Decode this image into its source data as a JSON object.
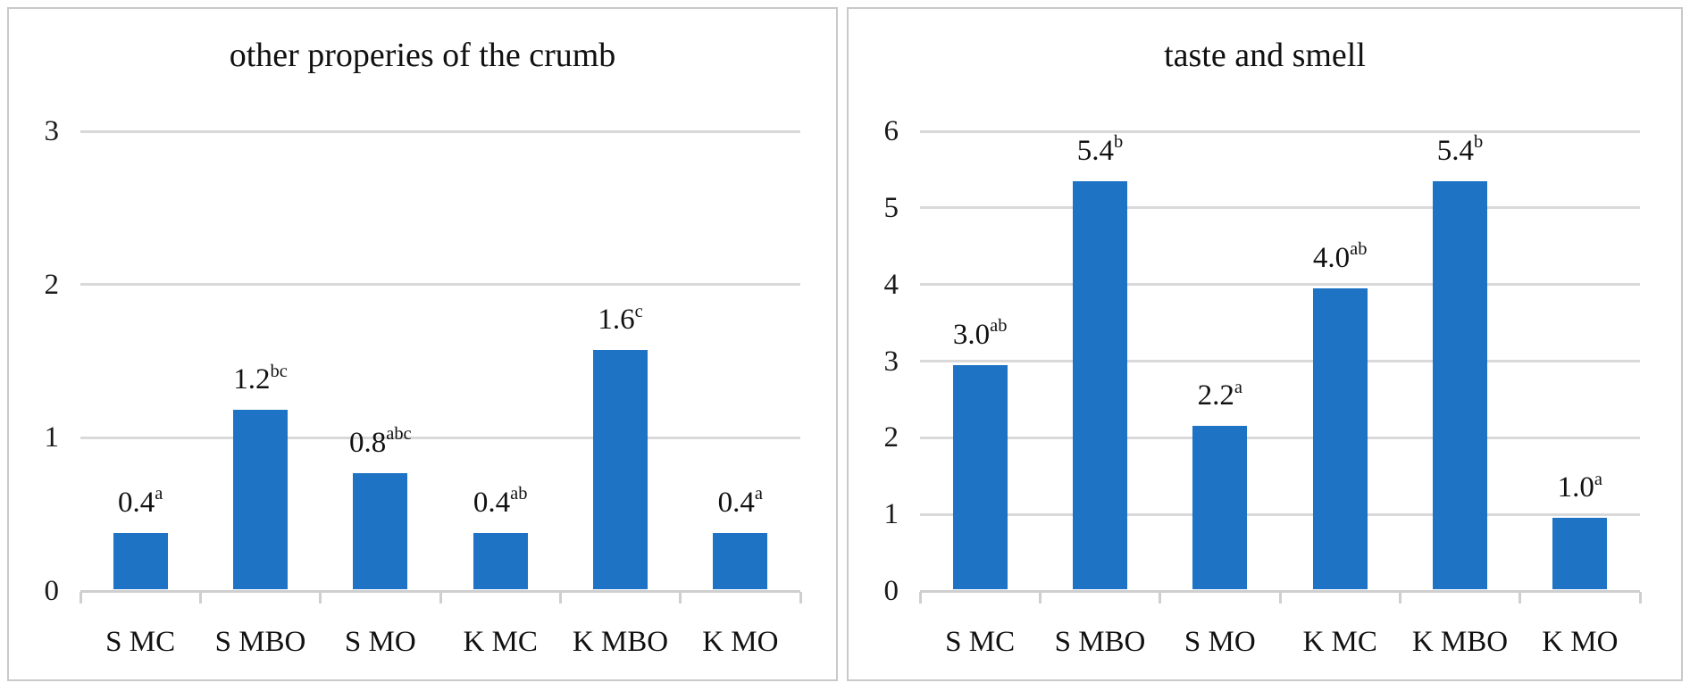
{
  "figure_caption_hidden": "",
  "style": {
    "bar_color": "#1E73C5",
    "gridline_color": "#d9d9d9",
    "axis_color": "#cfcfcf",
    "panel_border_color": "#c9c9c9",
    "text_color": "#111111",
    "background": "#ffffff"
  },
  "chart_data": [
    {
      "type": "bar",
      "title": "other properies of the crumb",
      "categories": [
        "S MC",
        "S MBO",
        "S MO",
        "K MC",
        "K MBO",
        "K MO"
      ],
      "values": [
        0.4,
        1.2,
        0.8,
        0.4,
        1.6,
        0.4
      ],
      "data_labels": [
        {
          "value": "0.4",
          "sup": "a"
        },
        {
          "value": "1.2",
          "sup": "bc"
        },
        {
          "value": "0.8",
          "sup": "abc"
        },
        {
          "value": "0.4",
          "sup": "ab"
        },
        {
          "value": "1.6",
          "sup": "c"
        },
        {
          "value": "0.4",
          "sup": "a"
        }
      ],
      "bar_heights_as_drawn": [
        0.38,
        1.18,
        0.77,
        0.38,
        1.57,
        0.38
      ],
      "ylim": [
        0,
        3
      ],
      "yticks": [
        0,
        1,
        2,
        3
      ],
      "xlabel": "",
      "ylabel": "",
      "grid": "horizontal",
      "legend": "none"
    },
    {
      "type": "bar",
      "title": "taste and smell",
      "categories": [
        "S MC",
        "S MBO",
        "S MO",
        "K MC",
        "K MBO",
        "K MO"
      ],
      "values": [
        3.0,
        5.4,
        2.2,
        4.0,
        5.4,
        1.0
      ],
      "data_labels": [
        {
          "value": "3.0",
          "sup": "ab"
        },
        {
          "value": "5.4",
          "sup": "b"
        },
        {
          "value": "2.2",
          "sup": "a"
        },
        {
          "value": "4.0",
          "sup": "ab"
        },
        {
          "value": "5.4",
          "sup": "b"
        },
        {
          "value": "1.0",
          "sup": "a"
        }
      ],
      "bar_heights_as_drawn": [
        2.95,
        5.35,
        2.15,
        3.95,
        5.35,
        0.95
      ],
      "ylim": [
        0,
        6
      ],
      "yticks": [
        0,
        1,
        2,
        3,
        4,
        5,
        6
      ],
      "xlabel": "",
      "ylabel": "",
      "grid": "horizontal",
      "legend": "none"
    }
  ]
}
